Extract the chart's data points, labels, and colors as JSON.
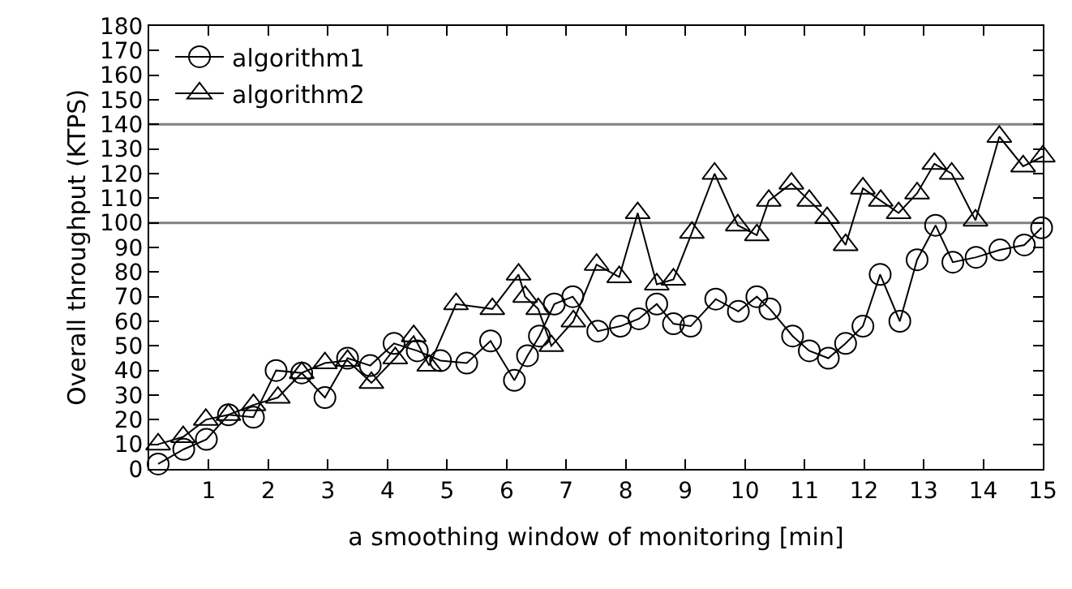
{
  "chart_data": {
    "type": "line",
    "xlabel": "a smoothing window of monitoring [min]",
    "ylabel": "Overall throughput (KTPS)",
    "xlim": [
      0,
      15
    ],
    "xticks": [
      1,
      2,
      3,
      4,
      5,
      6,
      7,
      8,
      9,
      10,
      11,
      12,
      13,
      14,
      15
    ],
    "ylim": [
      0,
      180
    ],
    "yticks": [
      0,
      10,
      20,
      30,
      40,
      50,
      60,
      70,
      80,
      90,
      100,
      110,
      120,
      130,
      140,
      150,
      160,
      170,
      180
    ],
    "grid": false,
    "legend": "top left",
    "line_style": "solid",
    "ref_lines": [
      {
        "axis": "y",
        "value": 100,
        "color": "#808080"
      },
      {
        "axis": "y",
        "value": 140,
        "color": "#808080"
      }
    ],
    "series": [
      {
        "name": "algorithm1",
        "color": "#000000",
        "marker": "circle",
        "x": [
          0.15,
          0.58,
          0.96,
          1.33,
          1.75,
          2.13,
          2.56,
          2.95,
          3.33,
          3.71,
          4.11,
          4.5,
          4.89,
          5.33,
          5.73,
          6.13,
          6.35,
          6.55,
          6.8,
          7.11,
          7.53,
          7.91,
          8.22,
          8.52,
          8.8,
          9.09,
          9.51,
          9.89,
          10.2,
          10.42,
          10.8,
          11.08,
          11.4,
          11.69,
          11.98,
          12.27,
          12.6,
          12.89,
          13.2,
          13.49,
          13.88,
          14.28,
          14.69,
          14.98
        ],
        "values": [
          2,
          8,
          12,
          22,
          21,
          40,
          39,
          29,
          45,
          42,
          51,
          48,
          44,
          43,
          52,
          36,
          46,
          54,
          67,
          70,
          56,
          58,
          61,
          67,
          59,
          58,
          69,
          64,
          70,
          65,
          54,
          48,
          45,
          51,
          58,
          79,
          60,
          85,
          99,
          84,
          86,
          89,
          91,
          98
        ]
      },
      {
        "name": "algorithm2",
        "color": "#000000",
        "marker": "triangle",
        "x": [
          0.15,
          0.57,
          0.95,
          1.33,
          1.75,
          2.16,
          2.56,
          2.95,
          3.33,
          3.73,
          4.13,
          4.44,
          4.7,
          5.15,
          5.76,
          6.2,
          6.31,
          6.53,
          6.75,
          7.12,
          7.51,
          7.89,
          8.2,
          8.52,
          8.8,
          9.11,
          9.49,
          9.88,
          10.2,
          10.4,
          10.78,
          11.08,
          11.38,
          11.69,
          11.98,
          12.28,
          12.58,
          12.89,
          13.18,
          13.47,
          13.87,
          14.27,
          14.67,
          15.0
        ],
        "values": [
          10,
          13,
          20,
          22,
          26,
          29,
          39,
          43,
          44,
          35,
          45,
          54,
          42,
          67,
          65,
          79,
          70,
          65,
          50,
          60,
          83,
          78,
          104,
          75,
          77,
          96,
          120,
          99,
          95,
          109,
          116,
          109,
          102,
          91,
          114,
          109,
          104,
          112,
          124,
          120,
          101,
          135,
          123,
          127
        ]
      }
    ]
  }
}
